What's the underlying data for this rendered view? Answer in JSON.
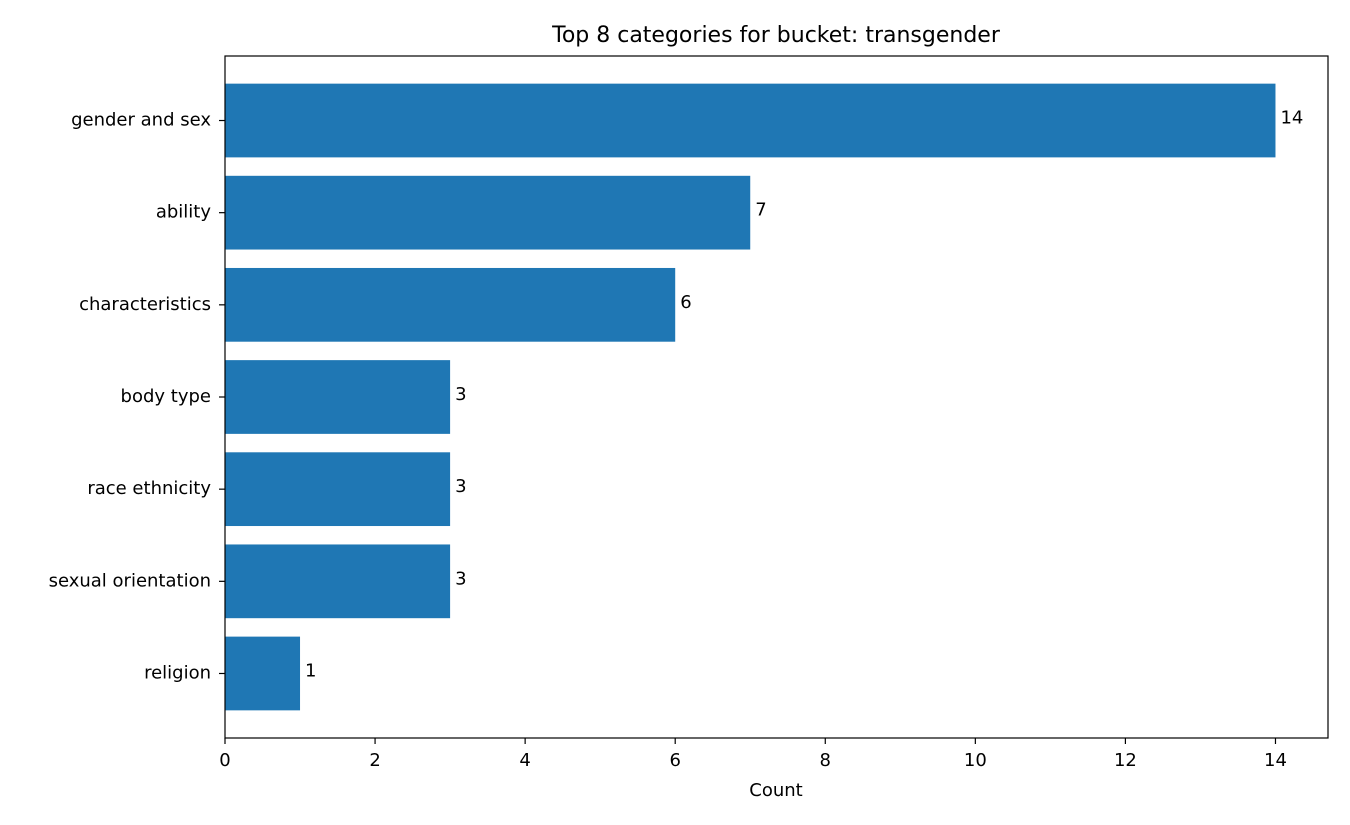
{
  "chart_data": {
    "type": "bar",
    "orientation": "horizontal",
    "title": "Top 8 categories for bucket: transgender",
    "xlabel": "Count",
    "ylabel": "",
    "categories": [
      "gender and sex",
      "ability",
      "characteristics",
      "body type",
      "race ethnicity",
      "sexual orientation",
      "religion"
    ],
    "values": [
      14,
      7,
      6,
      3,
      3,
      3,
      1
    ],
    "data_labels": [
      "14",
      "7",
      "6",
      "3",
      "3",
      "3",
      "1"
    ],
    "xlim": [
      0,
      14.7
    ],
    "xticks": [
      0,
      2,
      4,
      6,
      8,
      10,
      12,
      14
    ],
    "grid": false,
    "legend": "none",
    "bar_color": "#1f77b4"
  }
}
